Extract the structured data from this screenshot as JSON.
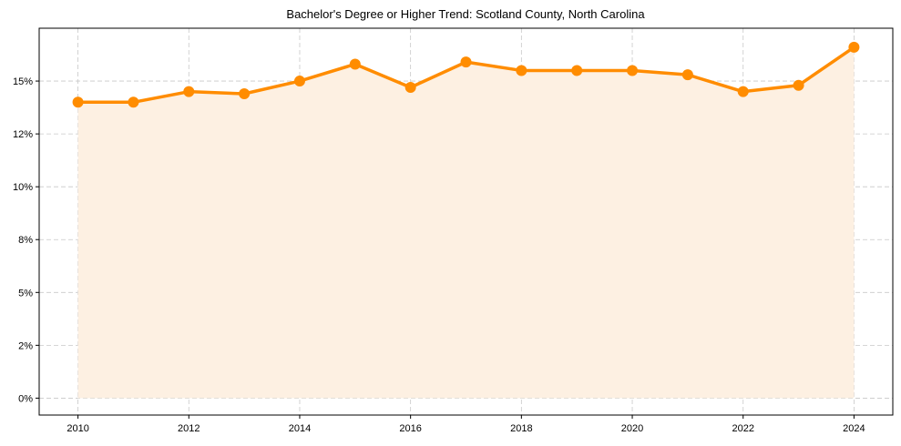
{
  "chart_data": {
    "type": "line",
    "title": "Bachelor's Degree or Higher Trend: Scotland County, North Carolina",
    "xlabel": "",
    "ylabel": "",
    "x": [
      2010,
      2011,
      2012,
      2013,
      2014,
      2015,
      2016,
      2017,
      2018,
      2019,
      2020,
      2021,
      2022,
      2023,
      2024
    ],
    "series": [
      {
        "name": "Bachelor's Degree or Higher",
        "values": [
          14.0,
          14.0,
          14.5,
          14.4,
          15.0,
          15.8,
          14.7,
          15.9,
          15.5,
          15.5,
          15.5,
          15.3,
          14.5,
          14.8,
          16.6
        ],
        "color": "#ff8c00",
        "fill": "#fdf0e2",
        "marker": "circle"
      }
    ],
    "xticks": [
      2010,
      2012,
      2014,
      2016,
      2018,
      2020,
      2022,
      2024
    ],
    "xtick_labels": [
      "2010",
      "2012",
      "2014",
      "2016",
      "2018",
      "2020",
      "2022",
      "2024"
    ],
    "yticks": [
      0,
      2.5,
      5,
      7.5,
      10,
      12.5,
      15
    ],
    "ytick_labels": [
      "0%",
      "2%",
      "5%",
      "8%",
      "10%",
      "12%",
      "15%"
    ],
    "xlim": [
      2009.3,
      2024.7
    ],
    "ylim": [
      -0.8,
      17.5
    ],
    "grid": true,
    "legend": null
  }
}
